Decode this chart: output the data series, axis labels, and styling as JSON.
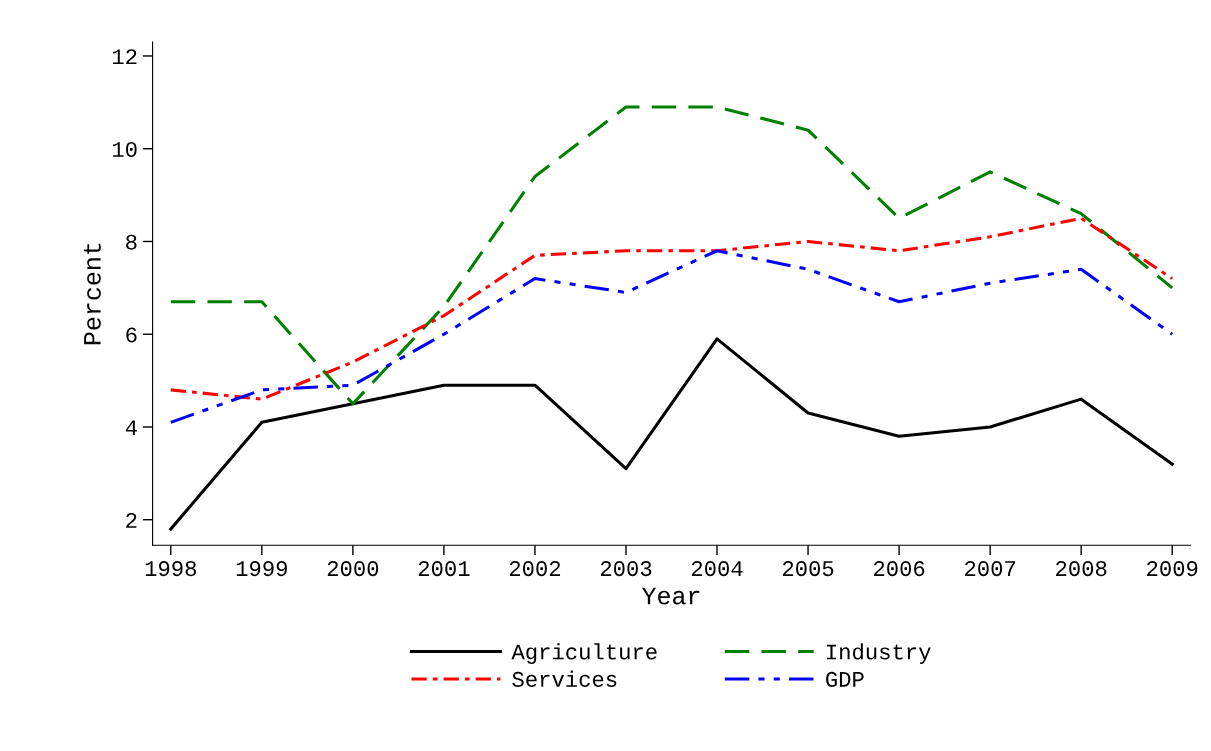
{
  "chart_data": {
    "type": "line",
    "xlabel": "Year",
    "ylabel": "Percent",
    "x": [
      1998,
      1999,
      2000,
      2001,
      2002,
      2003,
      2004,
      2005,
      2006,
      2007,
      2008,
      2009
    ],
    "series": [
      {
        "name": "Agriculture",
        "color": "#000000",
        "line_style": "solid",
        "values": [
          1.8,
          4.1,
          4.5,
          4.9,
          4.9,
          3.1,
          5.9,
          4.3,
          3.8,
          4.0,
          4.6,
          3.2
        ]
      },
      {
        "name": "Industry",
        "color": "#008000",
        "line_style": "dashed",
        "values": [
          6.7,
          6.7,
          4.5,
          6.6,
          9.4,
          10.9,
          10.9,
          10.4,
          8.5,
          9.5,
          8.6,
          7.0
        ]
      },
      {
        "name": "Services",
        "color": "#ff0000",
        "line_style": "dashdot",
        "values": [
          4.8,
          4.6,
          5.4,
          6.4,
          7.7,
          7.8,
          7.8,
          8.0,
          7.8,
          8.1,
          8.5,
          7.2
        ]
      },
      {
        "name": "GDP",
        "color": "#0000ff",
        "line_style": "dashdotdot",
        "values": [
          4.1,
          4.8,
          4.9,
          6.0,
          7.2,
          6.9,
          7.8,
          7.4,
          6.7,
          7.1,
          7.4,
          6.0
        ]
      }
    ],
    "xlim": [
      1997.8,
      2009.2
    ],
    "xticks": [
      1998,
      1999,
      2000,
      2001,
      2002,
      2003,
      2004,
      2005,
      2006,
      2007,
      2008,
      2009
    ],
    "ylim": [
      1.45,
      12.3
    ],
    "yticks": [
      2,
      4,
      6,
      8,
      10,
      12
    ],
    "grid": false,
    "legend": "bottom",
    "marker": "none"
  }
}
